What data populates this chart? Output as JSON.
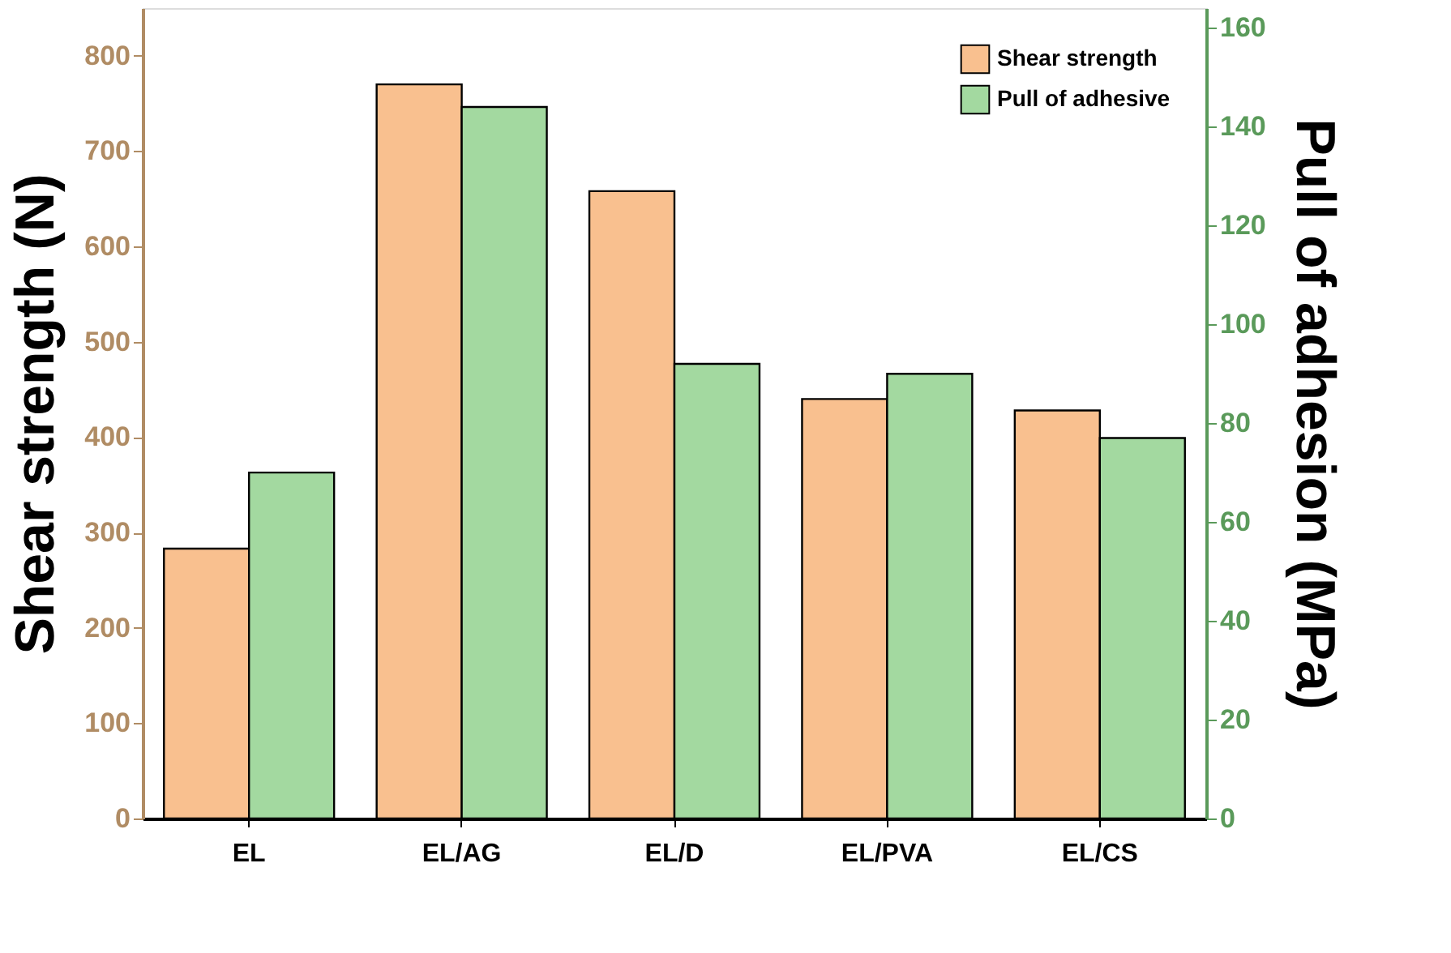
{
  "chart_data": {
    "type": "bar",
    "categories": [
      "EL",
      "EL/AG",
      "EL/D",
      "EL/PVA",
      "EL/CS"
    ],
    "ylabel": "Shear strength (N)",
    "y2label": "Pull of adhesion (MPa)",
    "series": [
      {
        "name": "Shear strength",
        "color": "#f9c08f",
        "values": [
          283,
          770,
          658,
          440,
          428
        ]
      },
      {
        "name": "Pull of adhesive",
        "color": "#a3d9a0",
        "values": [
          70,
          144,
          92,
          90,
          77
        ],
        "axis": "y2"
      }
    ],
    "ylim": [
      0,
      850
    ],
    "yticks": [
      0,
      100,
      200,
      300,
      400,
      500,
      600,
      700,
      800
    ],
    "y2lim": [
      0,
      164
    ],
    "y2ticks": [
      0,
      20,
      40,
      60,
      80,
      100,
      120,
      140,
      160
    ],
    "grid": false,
    "legend": "top right"
  }
}
